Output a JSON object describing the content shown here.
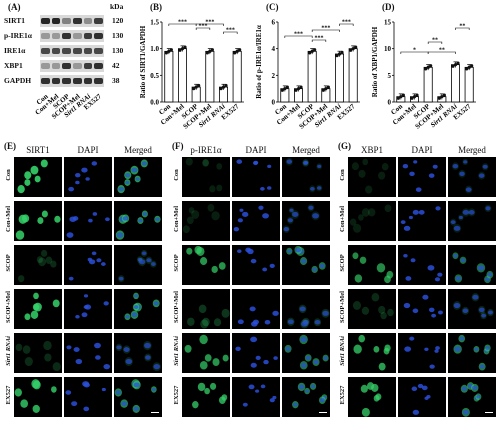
{
  "panels": {
    "A": "(A)",
    "B": "(B)",
    "C": "(C)",
    "D": "(D)",
    "E": "(E)",
    "F": "(F)",
    "G": "(G)"
  },
  "blot": {
    "unit": "kDa",
    "proteins": [
      {
        "name": "SIRT1",
        "kda": "120"
      },
      {
        "name": "p-IRE1α",
        "kda": "130"
      },
      {
        "name": "IRE1α",
        "kda": "130"
      },
      {
        "name": "XBP1",
        "kda": "42"
      },
      {
        "name": "GAPDH",
        "kda": "38"
      }
    ],
    "lanes": [
      "Con",
      "Con+Mel",
      "SCOP",
      "SCOP+Mel",
      "Sirt1 RNAi",
      "EX527"
    ]
  },
  "chart_data": [
    {
      "type": "bar",
      "panel": "B",
      "ylabel": "Ratio of SIRT1/GAPDH",
      "categories": [
        "Con",
        "Con+Mel",
        "SCOP",
        "SCOP+Mel",
        "Sirt1 RNAi",
        "EX527"
      ],
      "values": [
        0.95,
        1.0,
        0.28,
        0.95,
        0.28,
        0.95
      ],
      "yticks": [
        "0.0",
        "0.5",
        "1.0",
        "1.5"
      ],
      "ylim": [
        0,
        1.5
      ],
      "significance": [
        "***",
        "***",
        "***",
        "***"
      ]
    },
    {
      "type": "bar",
      "panel": "C",
      "ylabel": "Ratio of p-IRE1α/IRE1α",
      "categories": [
        "Con",
        "Con+Mel",
        "SCOP",
        "SCOP+Mel",
        "Sirt1 RNAi",
        "EX527"
      ],
      "values": [
        1.0,
        1.0,
        3.8,
        1.0,
        3.6,
        4.0
      ],
      "yticks": [
        "0",
        "2",
        "4",
        "6"
      ],
      "ylim": [
        0,
        6
      ],
      "significance": [
        "***",
        "***",
        "***",
        "***"
      ]
    },
    {
      "type": "bar",
      "panel": "D",
      "ylabel": "Ratio of XBP1/GAPDH",
      "categories": [
        "Con",
        "Con+Mel",
        "SCOP",
        "SCOP+Mel",
        "Sirt1 RNAi",
        "EX527"
      ],
      "values": [
        1.0,
        1.0,
        6.5,
        1.0,
        7.0,
        6.5
      ],
      "yticks": [
        "0",
        "5",
        "10",
        "15"
      ],
      "ylim": [
        0,
        15
      ],
      "significance": [
        "*",
        "**",
        "**",
        "**"
      ]
    }
  ],
  "micro": {
    "rows": [
      "Con",
      "Con+Mel",
      "SCOP",
      "SCOP+Mel",
      "Sirt1 RNAi",
      "EX527"
    ],
    "groups": [
      {
        "panel": "E",
        "heads": [
          "SIRT1",
          "DAPI",
          "Merged"
        ],
        "intensity": [
          0.9,
          0.85,
          0.2,
          0.85,
          0.2,
          0.8
        ]
      },
      {
        "panel": "F",
        "heads": [
          "p-IRE1α",
          "DAPI",
          "Merged"
        ],
        "intensity": [
          0.15,
          0.15,
          0.7,
          0.25,
          0.7,
          0.75
        ]
      },
      {
        "panel": "G",
        "heads": [
          "XBP1",
          "DAPI",
          "Merged"
        ],
        "intensity": [
          0.15,
          0.15,
          0.65,
          0.2,
          0.75,
          0.75
        ]
      }
    ]
  },
  "colors": {
    "green": "#35d26a",
    "blue": "#2a4fd8",
    "merged": "#2ec6b0"
  }
}
